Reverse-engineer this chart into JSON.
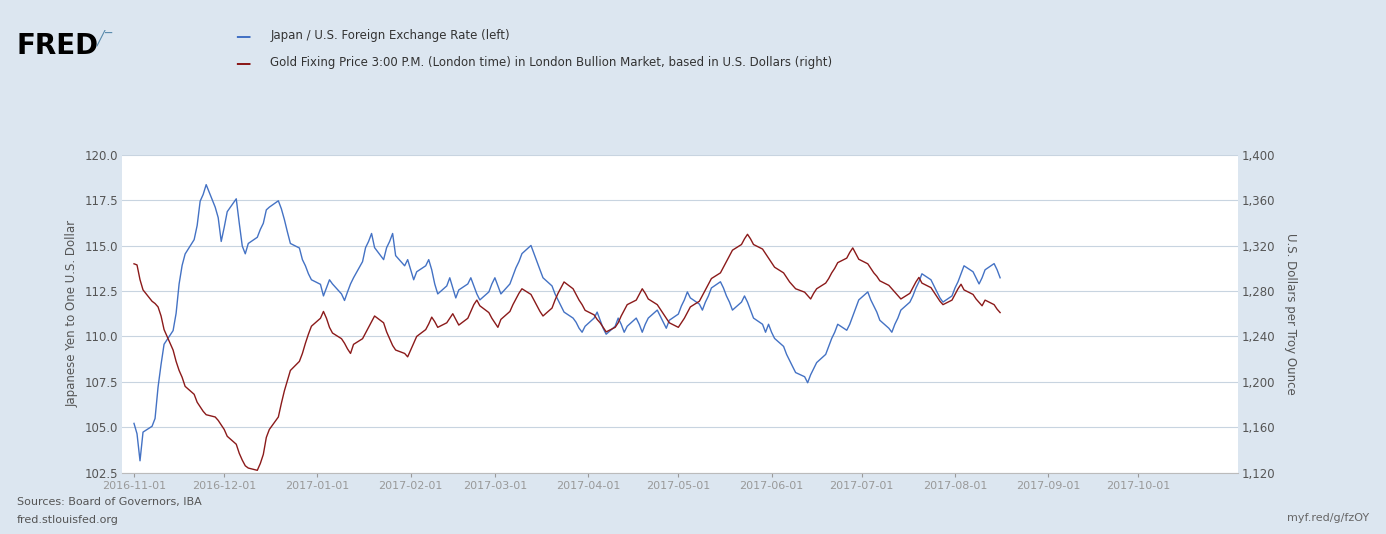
{
  "title_line1": "Japan / U.S. Foreign Exchange Rate (left)",
  "title_line2": "Gold Fixing Price 3:00 P.M. (London time) in London Bullion Market, based in U.S. Dollars (right)",
  "ylabel_left": "Japanese Yen to One U.S. Dollar",
  "ylabel_right": "U.S. Dollars per Troy Ounce",
  "source_line1": "Sources: Board of Governors, IBA",
  "source_line2": "fred.stlouisfed.org",
  "source_right": "myf.red/g/fzOY",
  "background_outer": "#dce6f0",
  "background_inner": "#ffffff",
  "grid_color": "#c8d4e0",
  "line_color_left": "#4472c4",
  "line_color_right": "#8b1a1a",
  "ylim_left": [
    102.5,
    120.0
  ],
  "ylim_right": [
    1120,
    1400
  ],
  "yticks_left": [
    102.5,
    105.0,
    107.5,
    110.0,
    112.5,
    115.0,
    117.5,
    120.0
  ],
  "yticks_right": [
    1120,
    1160,
    1200,
    1240,
    1280,
    1320,
    1360,
    1400
  ],
  "xtick_labels": [
    "2016-11-01",
    "2016-12-01",
    "2017-01-01",
    "2017-02-01",
    "2017-03-01",
    "2017-04-01",
    "2017-05-01",
    "2017-06-01",
    "2017-07-01",
    "2017-08-01",
    "2017-09-01",
    "2017-10-01"
  ],
  "usdjpy": [
    105.21,
    104.64,
    103.15,
    104.73,
    105.05,
    105.48,
    107.21,
    108.46,
    109.57,
    110.32,
    111.27,
    112.89,
    113.91,
    114.54,
    115.33,
    116.11,
    117.45,
    117.82,
    118.36,
    117.12,
    116.54,
    115.23,
    116.01,
    116.87,
    117.58,
    116.24,
    114.98,
    114.55,
    115.12,
    115.46,
    115.89,
    116.23,
    116.97,
    117.12,
    117.47,
    117.03,
    116.44,
    115.76,
    115.12,
    114.87,
    114.23,
    113.89,
    113.45,
    113.12,
    112.87,
    112.23,
    112.67,
    113.12,
    112.89,
    112.34,
    111.98,
    112.45,
    112.89,
    113.23,
    114.12,
    114.89,
    115.23,
    115.67,
    114.89,
    114.23,
    114.89,
    115.23,
    115.67,
    114.45,
    113.89,
    114.23,
    113.67,
    113.12,
    113.56,
    113.89,
    114.23,
    113.67,
    112.89,
    112.34,
    112.78,
    113.23,
    112.67,
    112.12,
    112.56,
    112.89,
    113.23,
    112.78,
    112.34,
    112.01,
    112.45,
    112.89,
    113.23,
    112.78,
    112.34,
    112.89,
    113.34,
    113.78,
    114.12,
    114.56,
    115.01,
    114.56,
    114.12,
    113.67,
    113.23,
    112.78,
    112.34,
    112.01,
    111.67,
    111.34,
    111.01,
    110.78,
    110.45,
    110.23,
    110.56,
    111.01,
    111.34,
    110.89,
    110.45,
    110.12,
    110.56,
    111.01,
    110.67,
    110.23,
    110.56,
    111.01,
    110.67,
    110.23,
    110.67,
    111.01,
    111.45,
    111.12,
    110.78,
    110.45,
    110.89,
    111.23,
    111.67,
    112.01,
    112.45,
    112.12,
    111.78,
    111.45,
    111.89,
    112.23,
    112.67,
    113.01,
    112.67,
    112.23,
    111.89,
    111.45,
    111.89,
    112.23,
    111.89,
    111.45,
    111.01,
    110.67,
    110.23,
    110.67,
    110.23,
    109.89,
    109.45,
    109.01,
    108.67,
    108.34,
    108.01,
    107.78,
    107.45,
    107.89,
    108.23,
    108.56,
    109.01,
    109.45,
    109.89,
    110.23,
    110.67,
    110.34,
    110.67,
    111.12,
    111.56,
    112.01,
    112.45,
    112.01,
    111.67,
    111.34,
    110.89,
    110.45,
    110.23,
    110.67,
    111.01,
    111.45,
    111.89,
    112.23,
    112.67,
    113.01,
    113.45,
    113.12,
    112.78,
    112.45,
    112.12,
    111.89,
    112.23,
    112.67,
    113.01,
    113.45,
    113.89,
    113.56,
    113.23,
    112.89,
    113.23,
    113.67,
    114.01,
    113.67,
    113.23
  ],
  "gold": [
    1304,
    1303,
    1290,
    1281,
    1271,
    1269,
    1266,
    1258,
    1246,
    1228,
    1218,
    1210,
    1204,
    1196,
    1189,
    1182,
    1178,
    1174,
    1171,
    1169,
    1166,
    1162,
    1158,
    1152,
    1145,
    1137,
    1131,
    1126,
    1124,
    1122,
    1128,
    1136,
    1151,
    1158,
    1169,
    1181,
    1192,
    1201,
    1210,
    1218,
    1225,
    1234,
    1242,
    1249,
    1256,
    1262,
    1256,
    1248,
    1243,
    1238,
    1234,
    1229,
    1225,
    1233,
    1238,
    1243,
    1248,
    1253,
    1258,
    1252,
    1244,
    1238,
    1232,
    1228,
    1225,
    1222,
    1228,
    1234,
    1240,
    1246,
    1251,
    1257,
    1253,
    1248,
    1252,
    1256,
    1260,
    1255,
    1250,
    1256,
    1262,
    1268,
    1272,
    1267,
    1261,
    1256,
    1252,
    1248,
    1255,
    1262,
    1268,
    1273,
    1278,
    1282,
    1277,
    1272,
    1267,
    1262,
    1258,
    1265,
    1272,
    1278,
    1283,
    1288,
    1282,
    1277,
    1272,
    1268,
    1263,
    1259,
    1255,
    1252,
    1248,
    1244,
    1248,
    1252,
    1258,
    1263,
    1268,
    1272,
    1277,
    1282,
    1278,
    1273,
    1268,
    1264,
    1260,
    1256,
    1252,
    1248,
    1252,
    1256,
    1261,
    1266,
    1271,
    1276,
    1281,
    1286,
    1291,
    1296,
    1301,
    1306,
    1311,
    1316,
    1321,
    1326,
    1330,
    1326,
    1321,
    1317,
    1313,
    1309,
    1305,
    1301,
    1296,
    1292,
    1288,
    1285,
    1282,
    1279,
    1276,
    1273,
    1278,
    1282,
    1287,
    1291,
    1296,
    1300,
    1305,
    1309,
    1314,
    1318,
    1313,
    1308,
    1304,
    1300,
    1296,
    1293,
    1289,
    1285,
    1282,
    1279,
    1276,
    1273,
    1278,
    1283,
    1288,
    1292,
    1287,
    1283,
    1279,
    1275,
    1271,
    1268,
    1272,
    1277,
    1282,
    1286,
    1281,
    1277,
    1273,
    1270,
    1267,
    1272,
    1268,
    1264,
    1261,
    1258,
    1255,
    1261,
    1266,
    1271,
    1275,
    1280,
    1276,
    1272,
    1269,
    1266,
    1263,
    1260,
    1257,
    1254,
    1258,
    1263,
    1267,
    1262
  ]
}
